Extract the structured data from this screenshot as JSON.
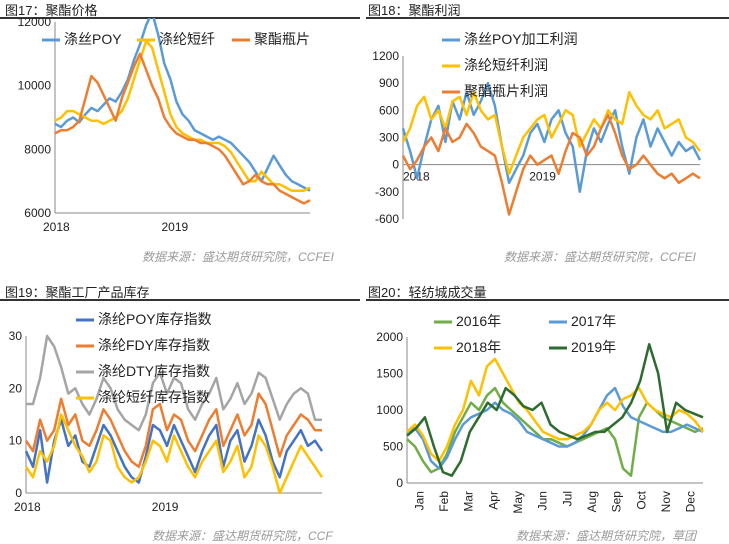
{
  "panels": [
    {
      "title": "图17：聚酯价格",
      "source": "数据来源：盛达期货研究院，CCFEI",
      "chart_data": {
        "type": "line",
        "xlabels": [
          "2018",
          "2019"
        ],
        "ylim": [
          6000,
          12000
        ],
        "yticks": [
          "6000",
          "8000",
          "10000",
          "12000"
        ],
        "series": [
          {
            "name": "涤丝POY",
            "color": "#5B9BD5",
            "values": [
              8800,
              8700,
              8900,
              9000,
              8850,
              9100,
              9300,
              9200,
              9400,
              9600,
              9500,
              9800,
              10200,
              10800,
              11300,
              11900,
              12300,
              11600,
              10700,
              10200,
              9500,
              9100,
              8900,
              8600,
              8500,
              8400,
              8300,
              8400,
              8300,
              8200,
              8000,
              7800,
              7600,
              7300,
              7000,
              7400,
              7800,
              7500,
              7200,
              7000,
              6900,
              6800,
              6700
            ]
          },
          {
            "name": "涤纶短纤",
            "color": "#FFC000",
            "values": [
              8900,
              9000,
              9200,
              9200,
              9100,
              9000,
              8900,
              8900,
              8800,
              8900,
              9000,
              9200,
              9600,
              10200,
              10800,
              11400,
              11200,
              10500,
              9800,
              9100,
              8700,
              8500,
              8400,
              8300,
              8300,
              8200,
              8200,
              8200,
              8100,
              7900,
              7600,
              7300,
              7000,
              7000,
              7300,
              7100,
              6900,
              6900,
              6800,
              6700,
              6700,
              6700,
              6800
            ]
          },
          {
            "name": "聚酯瓶片",
            "color": "#ED7D31",
            "values": [
              8500,
              8600,
              8600,
              8700,
              8900,
              9600,
              10300,
              10100,
              9700,
              9300,
              8900,
              9600,
              10100,
              10600,
              11000,
              10500,
              10000,
              9600,
              9000,
              8700,
              8500,
              8400,
              8300,
              8300,
              8200,
              8200,
              8100,
              8000,
              7800,
              7500,
              7200,
              6900,
              7000,
              7200,
              7000,
              6900,
              6900,
              6700,
              6600,
              6500,
              6400,
              6300,
              6400
            ]
          }
        ]
      }
    },
    {
      "title": "图18：聚酯利润",
      "source": "数据来源：盛达期货研究院，CCFEI",
      "chart_data": {
        "type": "line",
        "xlabels": [
          "2018",
          "2019"
        ],
        "ylim": [
          -600,
          1200
        ],
        "yticks": [
          "-600",
          "-300",
          "0",
          "300",
          "600",
          "900",
          "1200"
        ],
        "series": [
          {
            "name": "涤丝POY加工利润",
            "color": "#5B9BD5",
            "values": [
              400,
              150,
              -150,
              200,
              500,
              650,
              250,
              700,
              500,
              800,
              550,
              700,
              900,
              650,
              200,
              -200,
              -50,
              100,
              350,
              450,
              250,
              500,
              600,
              350,
              200,
              -300,
              150,
              400,
              250,
              450,
              600,
              200,
              -100,
              300,
              500,
              200,
              400,
              250,
              100,
              250,
              150,
              200,
              50
            ]
          },
          {
            "name": "涤纶短纤利润",
            "color": "#FFC000",
            "values": [
              250,
              400,
              650,
              750,
              500,
              600,
              400,
              700,
              750,
              550,
              800,
              600,
              500,
              550,
              200,
              -100,
              100,
              300,
              400,
              500,
              550,
              300,
              450,
              600,
              550,
              200,
              350,
              500,
              400,
              600,
              500,
              450,
              800,
              650,
              550,
              500,
              600,
              400,
              450,
              500,
              300,
              250,
              150
            ]
          },
          {
            "name": "聚酯瓶片利润",
            "color": "#ED7D31",
            "values": [
              100,
              -50,
              50,
              200,
              300,
              150,
              400,
              250,
              300,
              450,
              350,
              200,
              150,
              100,
              -200,
              -550,
              -300,
              -50,
              100,
              0,
              50,
              100,
              -100,
              150,
              350,
              300,
              100,
              200,
              400,
              550,
              350,
              100,
              -50,
              0,
              100,
              0,
              -100,
              -150,
              -100,
              -200,
              -150,
              -100,
              -150
            ]
          }
        ]
      }
    },
    {
      "title": "图19：聚酯工厂产品库存",
      "source": "数据来源：盛达期货研究院，CCF",
      "chart_data": {
        "type": "line",
        "xlabels": [
          "2018",
          "2019"
        ],
        "ylim": [
          0,
          30
        ],
        "yticks": [
          "0",
          "10",
          "20",
          "30"
        ],
        "series": [
          {
            "name": "涤纶POY库存指数",
            "color": "#4472C4",
            "values": [
              8,
              5,
              12,
              2,
              10,
              14,
              9,
              11,
              6,
              5,
              9,
              13,
              11,
              8,
              5,
              3,
              2,
              7,
              13,
              12,
              9,
              13,
              10,
              7,
              4,
              8,
              11,
              13,
              5,
              10,
              12,
              6,
              9,
              14,
              11,
              6,
              3,
              8,
              10,
              12,
              9,
              10,
              8
            ]
          },
          {
            "name": "涤纶FDY库存指数",
            "color": "#ED7D31",
            "values": [
              10,
              8,
              14,
              10,
              12,
              18,
              13,
              15,
              10,
              9,
              12,
              16,
              14,
              11,
              8,
              6,
              5,
              9,
              16,
              17,
              12,
              15,
              14,
              10,
              8,
              11,
              14,
              16,
              9,
              12,
              15,
              11,
              13,
              19,
              17,
              12,
              7,
              11,
              13,
              15,
              14,
              12,
              12
            ]
          },
          {
            "name": "涤纶DTY库存指数",
            "color": "#A5A5A5",
            "values": [
              17,
              17,
              22,
              30,
              28,
              24,
              19,
              20,
              17,
              15,
              18,
              22,
              20,
              16,
              14,
              13,
              12,
              15,
              21,
              23,
              19,
              22,
              21,
              16,
              14,
              17,
              19,
              22,
              16,
              18,
              21,
              17,
              19,
              23,
              22,
              18,
              14,
              17,
              19,
              20,
              19,
              14,
              14
            ]
          },
          {
            "name": "涤纶短纤库存指数",
            "color": "#FFC000",
            "values": [
              5,
              3,
              8,
              6,
              9,
              15,
              12,
              9,
              7,
              4,
              6,
              11,
              10,
              5,
              3,
              2,
              3,
              6,
              10,
              9,
              6,
              11,
              8,
              5,
              3,
              6,
              8,
              10,
              4,
              6,
              9,
              3,
              5,
              11,
              9,
              5,
              0,
              3,
              6,
              9,
              7,
              5,
              3
            ]
          }
        ]
      }
    },
    {
      "title": "图20：轻纺城成交量",
      "source": "数据来源：盛达期货研究院，草团",
      "chart_data": {
        "type": "line",
        "xlabels": [
          "Jan",
          "Feb",
          "Mar",
          "Apr",
          "May",
          "Jun",
          "Jul",
          "Aug",
          "Sep",
          "Oct",
          "Nov",
          "Dec"
        ],
        "ylim": [
          0,
          2000
        ],
        "yticks": [
          "0",
          "500",
          "1000",
          "1500",
          "2000"
        ],
        "series": [
          {
            "name": "2016年",
            "color": "#70AD47",
            "values": [
              600,
              500,
              300,
              150,
              200,
              400,
              700,
              900,
              1100,
              1000,
              1200,
              1300,
              1100,
              1000,
              900,
              800,
              700,
              600,
              600,
              550,
              500,
              550,
              600,
              650,
              700,
              750,
              600,
              200,
              100,
              900,
              1100,
              1000,
              900,
              850,
              800,
              750,
              700,
              750
            ]
          },
          {
            "name": "2017年",
            "color": "#5B9BD5",
            "values": [
              700,
              750,
              600,
              300,
              200,
              350,
              600,
              800,
              900,
              950,
              1000,
              1100,
              1000,
              950,
              850,
              700,
              650,
              600,
              550,
              500,
              500,
              550,
              650,
              800,
              1000,
              1200,
              1300,
              1050,
              900,
              850,
              800,
              750,
              700,
              700,
              750,
              800,
              750,
              700
            ]
          },
          {
            "name": "2018年",
            "color": "#FFC000",
            "values": [
              700,
              800,
              650,
              400,
              300,
              500,
              800,
              1000,
              1400,
              1200,
              1600,
              1700,
              1500,
              1300,
              1100,
              1000,
              850,
              700,
              650,
              600,
              600,
              650,
              700,
              800,
              1000,
              1100,
              1000,
              1150,
              1200,
              1300,
              1100,
              1000,
              950,
              900,
              1000,
              950,
              850,
              700
            ]
          },
          {
            "name": "2019年",
            "color": "#2E6B30",
            "values": [
              650,
              750,
              900,
              500,
              150,
              100,
              300,
              700,
              900,
              1100,
              1000,
              1300,
              1200,
              1050,
              1000,
              1100,
              800,
              700,
              650,
              600,
              650,
              700,
              700,
              800,
              900,
              1100,
              1400,
              1900,
              1500,
              700,
              1100,
              1000,
              950,
              900
            ]
          }
        ]
      }
    }
  ]
}
